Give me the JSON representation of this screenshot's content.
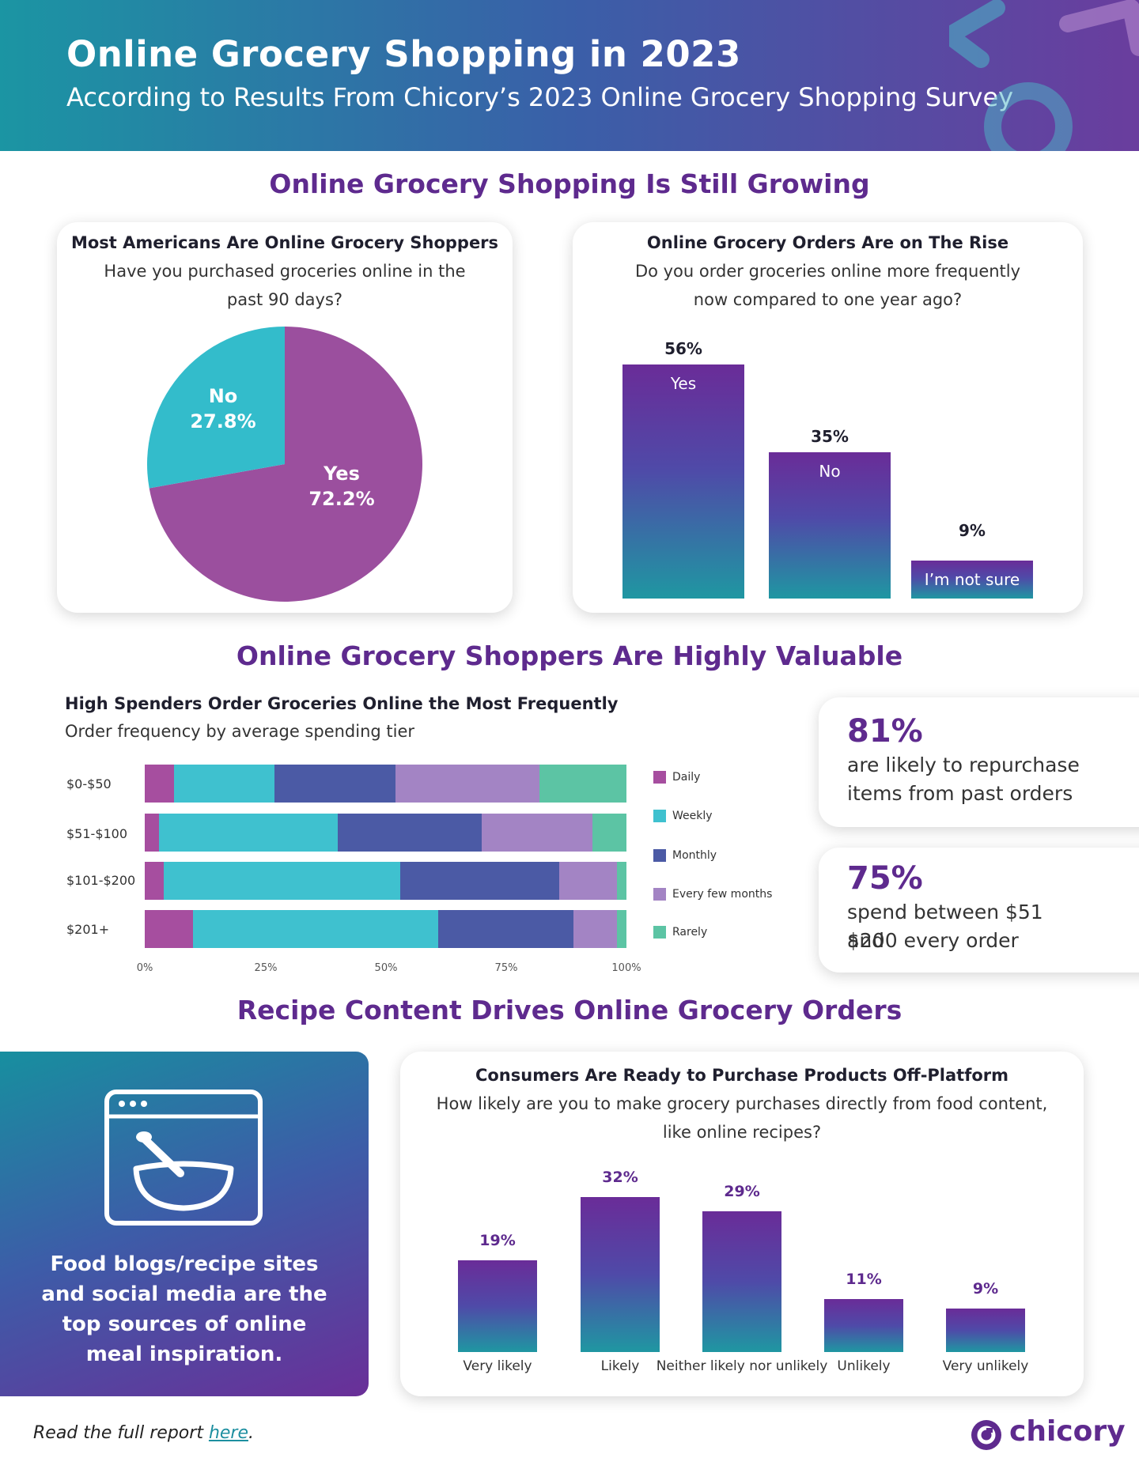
{
  "header": {
    "title": "Online Grocery Shopping in 2023",
    "subtitle": "According to Results From Chicory’s 2023 Online Grocery Shopping Survey"
  },
  "sections": {
    "growing": "Online Grocery Shopping Is Still Growing",
    "valuable": "Online Grocery Shoppers Are Highly Valuable",
    "recipe": "Recipe Content Drives Online Grocery Orders"
  },
  "colors": {
    "purple": "#5e2a8e",
    "pie_yes": "#9b4f9e",
    "pie_no": "#33bccb",
    "daily": "#a64e9f",
    "weekly": "#3fc1cf",
    "monthly": "#4b5aa5",
    "every_few_months": "#a384c4",
    "rarely": "#5cc4a4"
  },
  "pie_card": {
    "title": "Most Americans Are Online Grocery Shoppers",
    "question_line1": "Have you purchased groceries online in the",
    "question_line2": "past 90 days?"
  },
  "rise_card": {
    "title": "Online Grocery Orders Are on The Rise",
    "question_line1": "Do you order groceries online more frequently",
    "question_line2": "now compared to one year ago?"
  },
  "spend_card": {
    "title": "High Spenders Order Groceries Online the Most Frequently",
    "subtitle": "Order frequency by average spending tier"
  },
  "stats": [
    {
      "value": "81%",
      "line1": "are likely to repurchase",
      "line2": "items from past orders"
    },
    {
      "value": "75%",
      "line1": "spend between $51 and",
      "line2": "$200 every order"
    }
  ],
  "recipe_panel": {
    "line1": "Food blogs/recipe sites",
    "line2": "and social media are the",
    "line3": "top sources of online",
    "line4": "meal inspiration."
  },
  "purchase_card": {
    "title": "Consumers Are Ready to Purchase Products Off-Platform",
    "question_line1": "How likely are you to make grocery purchases directly from food content,",
    "question_line2": "like online recipes?"
  },
  "footer": {
    "text": "Read the full report ",
    "link": "here",
    "suffix": ".",
    "brand": "chicory"
  },
  "chart_data": [
    {
      "type": "pie",
      "title": "Most Americans Are Online Grocery Shoppers",
      "categories": [
        "Yes",
        "No"
      ],
      "values": [
        72.2,
        27.8
      ],
      "labels": [
        "72.2%",
        "27.8%"
      ]
    },
    {
      "type": "bar",
      "title": "Online Grocery Orders Are on The Rise",
      "categories": [
        "Yes",
        "No",
        "I’m not sure"
      ],
      "values": [
        56,
        35,
        9
      ],
      "labels": [
        "56%",
        "35%",
        "9%"
      ],
      "ylim": [
        0,
        56
      ]
    },
    {
      "type": "bar",
      "orientation": "horizontal-stacked",
      "title": "High Spenders Order Groceries Online the Most Frequently",
      "categories": [
        "$0-$50",
        "$51-$100",
        "$101-$200",
        "$201+"
      ],
      "series": [
        {
          "name": "Daily",
          "values": [
            6,
            3,
            4,
            10
          ]
        },
        {
          "name": "Weekly",
          "values": [
            21,
            37,
            49,
            51
          ]
        },
        {
          "name": "Monthly",
          "values": [
            25,
            30,
            33,
            28
          ]
        },
        {
          "name": "Every few months",
          "values": [
            30,
            23,
            12,
            9
          ]
        },
        {
          "name": "Rarely",
          "values": [
            18,
            7,
            2,
            2
          ]
        }
      ],
      "xticks": [
        "0%",
        "25%",
        "50%",
        "75%",
        "100%"
      ],
      "xlim": [
        0,
        100
      ],
      "legend": "right"
    },
    {
      "type": "bar",
      "title": "Consumers Are Ready to Purchase Products Off-Platform",
      "categories": [
        "Very likely",
        "Likely",
        "Neither likely nor unlikely",
        "Unlikely",
        "Very unlikely"
      ],
      "values": [
        19,
        32,
        29,
        11,
        9
      ],
      "labels": [
        "19%",
        "32%",
        "29%",
        "11%",
        "9%"
      ],
      "ylim": [
        0,
        32
      ]
    }
  ]
}
